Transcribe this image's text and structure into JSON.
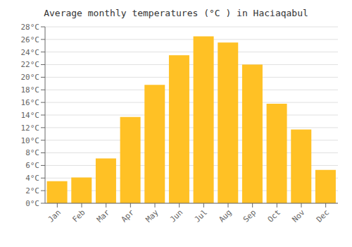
{
  "chart_data": {
    "type": "bar",
    "title": "Average monthly temperatures (°C ) in Hacı̇aqabul",
    "categories": [
      "Jan",
      "Feb",
      "Mar",
      "Apr",
      "May",
      "Jun",
      "Jul",
      "Aug",
      "Sep",
      "Oct",
      "Nov",
      "Dec"
    ],
    "values": [
      3.5,
      4.1,
      7.1,
      13.7,
      18.8,
      23.5,
      26.5,
      25.5,
      22.0,
      15.8,
      11.7,
      5.3
    ],
    "color": "#FFC125",
    "ylim": [
      0,
      28
    ],
    "yticks": [
      {
        "value": 0,
        "label": "0°C"
      },
      {
        "value": 2,
        "label": "2°C"
      },
      {
        "value": 4,
        "label": "4°C"
      },
      {
        "value": 6,
        "label": "6°C"
      },
      {
        "value": 8,
        "label": "8°C"
      },
      {
        "value": 10,
        "label": "10°C"
      },
      {
        "value": 12,
        "label": "12°C"
      },
      {
        "value": 14,
        "label": "14°C"
      },
      {
        "value": 16,
        "label": "16°C"
      },
      {
        "value": 18,
        "label": "18°C"
      },
      {
        "value": 20,
        "label": "20°C"
      },
      {
        "value": 22,
        "label": "22°C"
      },
      {
        "value": 24,
        "label": "24°C"
      },
      {
        "value": 26,
        "label": "26°C"
      },
      {
        "value": 28,
        "label": "28°C"
      }
    ],
    "grid": true
  }
}
